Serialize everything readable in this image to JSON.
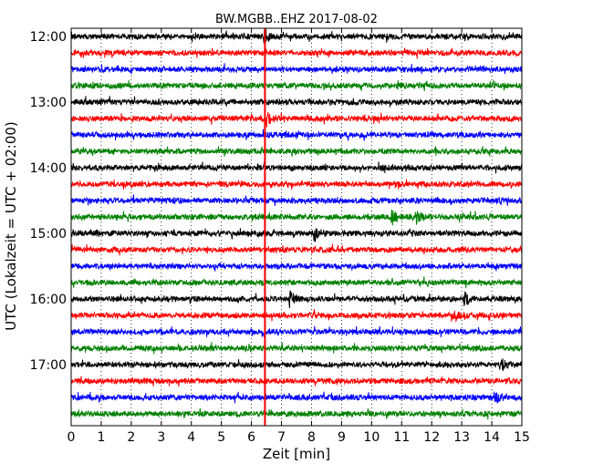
{
  "chart_data": {
    "type": "line",
    "title": "BW.MGBB..EHZ 2017-08-02",
    "xlabel": "Zeit  [min]",
    "ylabel": "UTC (Lokalzeit = UTC + 02:00)",
    "xlim": [
      0,
      15
    ],
    "x_ticks": [
      "0",
      "1",
      "2",
      "3",
      "4",
      "5",
      "6",
      "7",
      "8",
      "9",
      "10",
      "11",
      "12",
      "13",
      "14",
      "15"
    ],
    "y_tick_labels": [
      "12:00",
      "13:00",
      "14:00",
      "15:00",
      "16:00",
      "17:00"
    ],
    "row_interval_minutes": 15,
    "first_row": "12:00",
    "last_row": "17:45",
    "row_count": 24,
    "grid": true,
    "trace_colors": [
      "#000000",
      "#ff0000",
      "#0000ff",
      "#008000"
    ],
    "marker": {
      "x_minute": 6.45,
      "color": "#ff0000"
    },
    "events": [
      {
        "row": "12:00",
        "x_minute": 6.45
      },
      {
        "row": "13:15",
        "x_minute": 6.55
      },
      {
        "row": "14:45",
        "x_minute": 10.7
      },
      {
        "row": "14:45",
        "x_minute": 11.5
      },
      {
        "row": "15:00",
        "x_minute": 8.1
      },
      {
        "row": "16:00",
        "x_minute": 7.3
      },
      {
        "row": "16:00",
        "x_minute": 13.1
      },
      {
        "row": "16:15",
        "x_minute": 12.7
      },
      {
        "row": "17:00",
        "x_minute": 14.3
      },
      {
        "row": "17:30",
        "x_minute": 14.1
      }
    ]
  }
}
